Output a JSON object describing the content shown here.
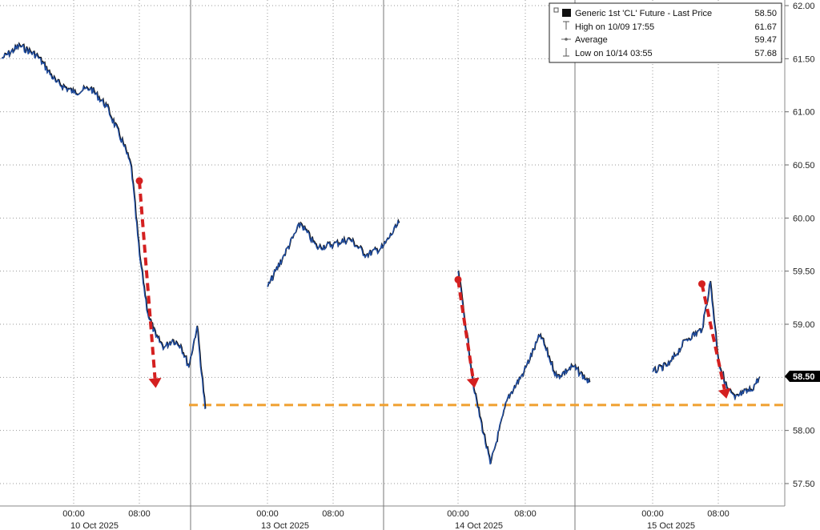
{
  "chart_data": {
    "type": "line",
    "title": "",
    "xlabel": "",
    "ylabel": "",
    "ylim": [
      57.3,
      62.0
    ],
    "y_ticks": [
      "57.50",
      "58.00",
      "58.50",
      "59.00",
      "59.50",
      "60.00",
      "60.50",
      "61.00",
      "61.50",
      "62.00"
    ],
    "x_time_labels": [
      "00:00",
      "08:00",
      "00:00",
      "08:00",
      "00:00",
      "08:00",
      "00:00",
      "08:00"
    ],
    "x_day_labels": [
      "10 Oct 2025",
      "13 Oct 2025",
      "14 Oct 2025",
      "15 Oct 2025"
    ],
    "grid": true,
    "legend_position": "top-right",
    "legend": [
      {
        "icon": "filled-square-icon",
        "label": "Generic 1st 'CL' Future - Last Price",
        "value": "58.50"
      },
      {
        "icon": "high-marker-icon",
        "label": "High on 10/09 17:55",
        "value": "61.67"
      },
      {
        "icon": "average-line-icon",
        "label": "Average",
        "value": "59.47"
      },
      {
        "icon": "low-marker-icon",
        "label": "Low on 10/14 03:55",
        "value": "57.68"
      }
    ],
    "last_price_label": "58.50",
    "series": [
      {
        "x": [
          "10/09 16:00",
          "10/09 18:00",
          "10/09 20:00",
          "10/09 22:00",
          "10/10 00:00",
          "10/10 02:00",
          "10/10 04:00",
          "10/10 06:00",
          "10/10 07:00",
          "10/10 08:00",
          "10/10 09:00",
          "10/10 10:00",
          "10/10 11:00",
          "10/10 12:00",
          "10/10 13:00",
          "10/10 14:00",
          "10/10 15:00",
          "10/10 16:00",
          "10/13 00:00",
          "10/13 02:00",
          "10/13 04:00",
          "10/13 06:00",
          "10/13 08:00",
          "10/13 10:00",
          "10/13 12:00",
          "10/13 14:00",
          "10/13 16:00",
          "10/14 00:00",
          "10/14 02:00",
          "10/14 03:55",
          "10/14 06:00",
          "10/14 08:00",
          "10/14 10:00",
          "10/14 12:00",
          "10/14 14:00",
          "10/14 16:00",
          "10/15 00:00",
          "10/15 02:00",
          "10/15 04:00",
          "10/15 06:00",
          "10/15 07:00",
          "10/15 08:00",
          "10/15 09:00",
          "10/15 10:00",
          "10/15 11:00",
          "10/15 12:00",
          "10/15 13:00"
        ],
        "values": [
          61.5,
          61.62,
          61.52,
          61.28,
          61.18,
          61.22,
          61.05,
          60.7,
          60.48,
          59.65,
          59.1,
          58.88,
          58.78,
          58.85,
          58.8,
          58.6,
          58.98,
          58.2,
          59.35,
          59.65,
          59.95,
          59.72,
          59.75,
          59.8,
          59.65,
          59.72,
          59.95,
          59.5,
          58.35,
          57.68,
          58.3,
          58.55,
          58.9,
          58.5,
          58.6,
          58.45,
          58.55,
          58.62,
          58.85,
          58.95,
          59.4,
          58.65,
          58.4,
          58.3,
          58.35,
          58.38,
          58.5
        ],
        "color": "#1f4fa8"
      }
    ],
    "reference_line": {
      "value": 58.24,
      "color": "#f0a030"
    },
    "annotations": [
      {
        "from": [
          "10/10 08:00",
          60.35
        ],
        "to": [
          "10/10 10:00",
          58.4
        ],
        "color": "#d42020"
      },
      {
        "from": [
          "10/14 00:00",
          59.42
        ],
        "to": [
          "10/14 02:00",
          58.4
        ],
        "color": "#d42020"
      },
      {
        "from": [
          "10/15 06:00",
          59.38
        ],
        "to": [
          "10/15 09:00",
          58.3
        ],
        "color": "#d42020"
      }
    ]
  },
  "colors": {
    "series": "#1f4fa8",
    "series_shadow": "#111111",
    "reference": "#f0a030",
    "annotation": "#d42020",
    "grid": "#999999",
    "label_bg": "#000000"
  }
}
